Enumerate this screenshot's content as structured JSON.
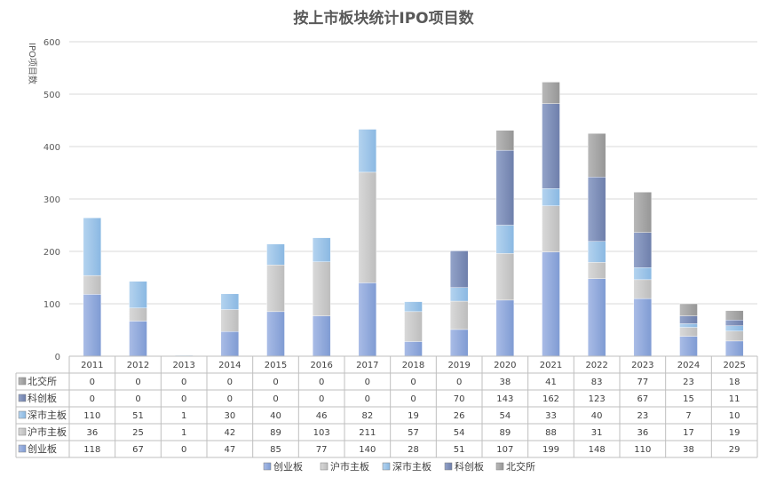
{
  "chart_data": {
    "type": "bar",
    "stacked": true,
    "title": "按上市板块统计IPO项目数",
    "ylabel": "IPO项目数",
    "xlabel": "",
    "ylim": [
      0,
      600
    ],
    "yticks": [
      0,
      100,
      200,
      300,
      400,
      500,
      600
    ],
    "grid": true,
    "legend_position": "bottom",
    "data_table": true,
    "categories": [
      "2011",
      "2012",
      "2013",
      "2014",
      "2015",
      "2016",
      "2017",
      "2018",
      "2019",
      "2020",
      "2021",
      "2022",
      "2023",
      "2024",
      "2025"
    ],
    "series": [
      {
        "name": "创业板",
        "color": "#8eaadb",
        "values": [
          118,
          67,
          0,
          47,
          85,
          77,
          140,
          28,
          51,
          107,
          199,
          148,
          110,
          38,
          29
        ]
      },
      {
        "name": "沪市主板",
        "color": "#c9c9c9",
        "values": [
          36,
          25,
          1,
          42,
          89,
          103,
          211,
          57,
          54,
          89,
          88,
          31,
          36,
          17,
          19
        ]
      },
      {
        "name": "深市主板",
        "color": "#9dc3e6",
        "values": [
          110,
          51,
          1,
          30,
          40,
          46,
          82,
          19,
          26,
          54,
          33,
          40,
          23,
          7,
          10
        ]
      },
      {
        "name": "科创板",
        "color": "#7f8fb8",
        "values": [
          0,
          0,
          0,
          0,
          0,
          0,
          0,
          0,
          70,
          143,
          162,
          123,
          67,
          15,
          11
        ]
      },
      {
        "name": "北交所",
        "color": "#a5a5a5",
        "values": [
          0,
          0,
          0,
          0,
          0,
          0,
          0,
          0,
          0,
          38,
          41,
          83,
          77,
          23,
          18
        ]
      }
    ],
    "table_row_order": [
      "北交所",
      "科创板",
      "深市主板",
      "沪市主板",
      "创业板"
    ]
  }
}
